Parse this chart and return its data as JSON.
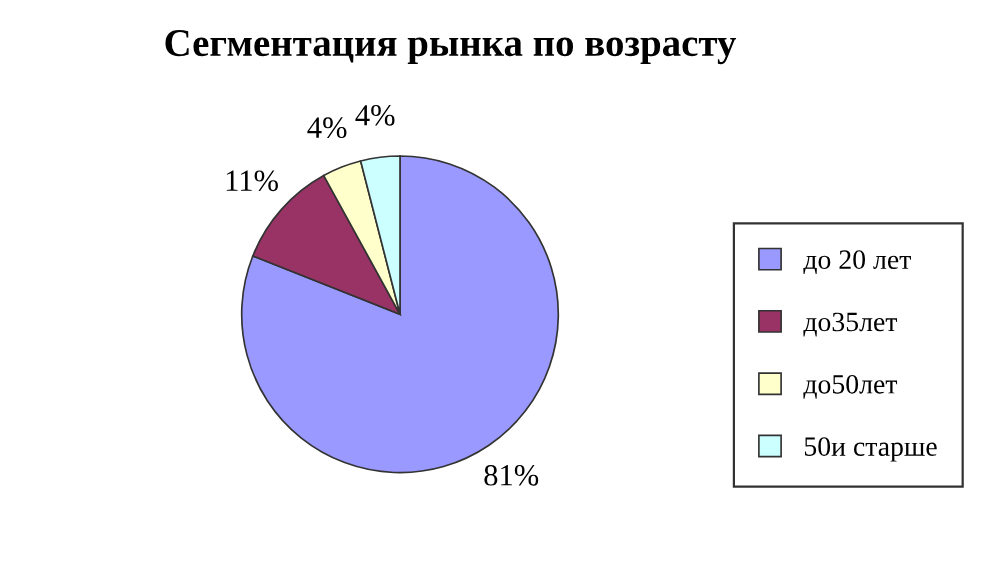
{
  "chart_data": {
    "type": "pie",
    "title": "Сегментация рынка по возрасту",
    "categories": [
      "до 20 лет",
      "до35лет",
      "до50лет",
      "50и старше"
    ],
    "values": [
      81,
      11,
      4,
      4
    ],
    "colors": [
      "#9999ff",
      "#993366",
      "#ffffcc",
      "#ccffff"
    ],
    "value_labels": [
      "81%",
      "11%",
      "4%",
      "4%"
    ],
    "legend": "right"
  }
}
